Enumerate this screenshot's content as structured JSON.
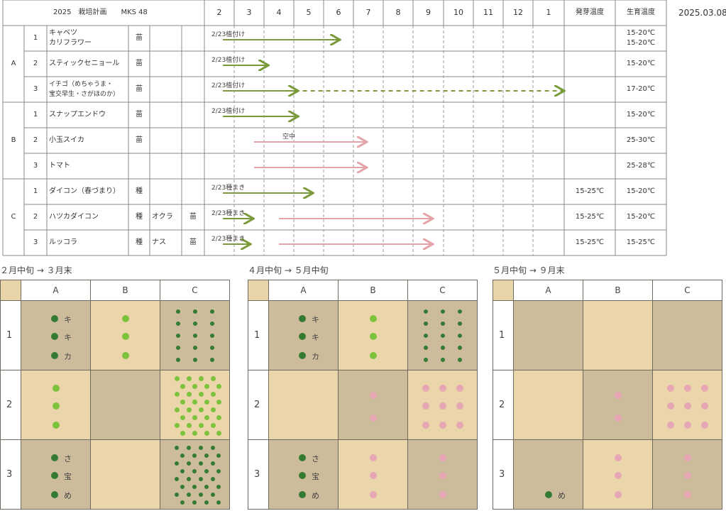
{
  "header": {
    "title": "2025　栽培計画　　MKS 48",
    "date": "2025.03.08",
    "months": [
      "2",
      "3",
      "4",
      "5",
      "6",
      "7",
      "8",
      "9",
      "10",
      "11",
      "12",
      "1"
    ],
    "germ_temp_label": "発芽温度",
    "grow_temp_label": "生育温度"
  },
  "groups": [
    "A",
    "B",
    "C"
  ],
  "rows": [
    {
      "num": "1",
      "name": "キャベツ",
      "name2": "カリフラワー",
      "type": "苗",
      "sub": "",
      "sub_type": "",
      "germ": "",
      "grow": "15-20℃",
      "grow2": "15-20℃",
      "annotation": "2/23植付け"
    },
    {
      "num": "2",
      "name": "スティックセニョール",
      "name2": "",
      "type": "苗",
      "sub": "",
      "sub_type": "",
      "germ": "",
      "grow": "15-20℃",
      "grow2": "",
      "annotation": "2/23植付け"
    },
    {
      "num": "3",
      "name": "イチゴ（めちゃうま・",
      "name2": "宝交早生・さがほのか）",
      "type": "苗",
      "sub": "",
      "sub_type": "",
      "germ": "",
      "grow": "17-20℃",
      "grow2": "",
      "annotation": "2/23植付け"
    },
    {
      "num": "1",
      "name": "スナップエンドウ",
      "name2": "",
      "type": "苗",
      "sub": "",
      "sub_type": "",
      "germ": "",
      "grow": "15-20℃",
      "grow2": "",
      "annotation": "2/23植付け"
    },
    {
      "num": "2",
      "name": "小玉スイカ",
      "name2": "",
      "type": "苗",
      "sub": "",
      "sub_type": "",
      "germ": "",
      "grow": "25-30℃",
      "grow2": "",
      "annotation": "空中"
    },
    {
      "num": "3",
      "name": "トマト",
      "name2": "",
      "type": "",
      "sub": "",
      "sub_type": "",
      "germ": "",
      "grow": "25-28℃",
      "grow2": "",
      "annotation": ""
    },
    {
      "num": "1",
      "name": "ダイコン（春づまり）",
      "name2": "",
      "type": "種",
      "sub": "",
      "sub_type": "",
      "germ": "15-25℃",
      "grow": "15-20℃",
      "grow2": "",
      "annotation": "2/23種まき"
    },
    {
      "num": "2",
      "name": "ハツカダイコン",
      "name2": "",
      "type": "種",
      "sub": "オクラ",
      "sub_type": "苗",
      "germ": "15-25℃",
      "grow": "15-20℃",
      "grow2": "",
      "annotation": "2/23種まき"
    },
    {
      "num": "3",
      "name": "ルッコラ",
      "name2": "",
      "type": "種",
      "sub": "ナス",
      "sub_type": "苗",
      "germ": "15-25℃",
      "grow": "15-25℃",
      "grow2": "",
      "annotation": "2/23種まき"
    }
  ],
  "timeline": [
    {
      "row": 0,
      "color": "green",
      "style": "solid",
      "from": 2.0,
      "to": 6.5
    },
    {
      "row": 1,
      "color": "green",
      "style": "solid",
      "from": 2.0,
      "to": 4.1
    },
    {
      "row": 2,
      "color": "green",
      "style": "solid",
      "from": 2.0,
      "to": 5.1
    },
    {
      "row": 2,
      "color": "green",
      "style": "dashed",
      "from": 5.3,
      "to": 1.5
    },
    {
      "row": 3,
      "color": "green",
      "style": "solid",
      "from": 2.0,
      "to": 5.1
    },
    {
      "row": 4,
      "color": "pink",
      "style": "solid",
      "from": 4.0,
      "to": 7.4
    },
    {
      "row": 5,
      "color": "pink",
      "style": "solid",
      "from": 4.0,
      "to": 7.4
    },
    {
      "row": 6,
      "color": "green",
      "style": "solid",
      "from": 2.0,
      "to": 5.6
    },
    {
      "row": 7,
      "color": "green",
      "style": "solid",
      "from": 2.0,
      "to": 3.6
    },
    {
      "row": 7,
      "color": "pink",
      "style": "solid",
      "from": 4.5,
      "to": 9.6
    },
    {
      "row": 8,
      "color": "green",
      "style": "solid",
      "from": 2.0,
      "to": 3.5
    },
    {
      "row": 8,
      "color": "pink",
      "style": "solid",
      "from": 4.5,
      "to": 9.6
    }
  ],
  "colors": {
    "green": "#7a9a3c",
    "pink": "#e3a3a8",
    "dark_cell": "#cdbc9c",
    "light_cell": "#ead6aa",
    "dark_green": "#357a32",
    "light_green": "#7dc23c",
    "pink_dot": "#e7a6b3"
  },
  "plans": [
    {
      "title": "２月中旬 → ３月末",
      "cols": [
        "A",
        "B",
        "C"
      ],
      "rows": [
        "1",
        "2",
        "3"
      ],
      "cells": [
        {
          "r": 0,
          "c": 0,
          "bg": "dark",
          "dots": "chars3",
          "chars": [
            "キ",
            "キ",
            "カ"
          ]
        },
        {
          "r": 0,
          "c": 1,
          "bg": "light",
          "dots": "lg3"
        },
        {
          "r": 0,
          "c": 2,
          "bg": "dark",
          "dots": "dgGrid3x5"
        },
        {
          "r": 1,
          "c": 0,
          "bg": "light",
          "dots": "lg3"
        },
        {
          "r": 1,
          "c": 1,
          "bg": "dark",
          "dots": "none"
        },
        {
          "r": 1,
          "c": 2,
          "bg": "light",
          "dots": "lgDense"
        },
        {
          "r": 2,
          "c": 0,
          "bg": "dark",
          "dots": "chars3",
          "chars": [
            "さ",
            "宝",
            "め"
          ]
        },
        {
          "r": 2,
          "c": 1,
          "bg": "light",
          "dots": "none"
        },
        {
          "r": 2,
          "c": 2,
          "bg": "dark",
          "dots": "dgDense"
        }
      ]
    },
    {
      "title": "４月中旬 → ５月中旬",
      "cols": [
        "A",
        "B",
        "C"
      ],
      "rows": [
        "1",
        "2",
        "3"
      ],
      "cells": [
        {
          "r": 0,
          "c": 0,
          "bg": "dark",
          "dots": "chars3",
          "chars": [
            "キ",
            "キ",
            "カ"
          ]
        },
        {
          "r": 0,
          "c": 1,
          "bg": "light",
          "dots": "lg3"
        },
        {
          "r": 0,
          "c": 2,
          "bg": "dark",
          "dots": "dgGrid3x5"
        },
        {
          "r": 1,
          "c": 0,
          "bg": "light",
          "dots": "none"
        },
        {
          "r": 1,
          "c": 1,
          "bg": "dark",
          "dots": "pk2"
        },
        {
          "r": 1,
          "c": 2,
          "bg": "light",
          "dots": "pk3x3"
        },
        {
          "r": 2,
          "c": 0,
          "bg": "dark",
          "dots": "chars3",
          "chars": [
            "さ",
            "宝",
            "め"
          ]
        },
        {
          "r": 2,
          "c": 1,
          "bg": "light",
          "dots": "pk3"
        },
        {
          "r": 2,
          "c": 2,
          "bg": "dark",
          "dots": "pk3"
        }
      ]
    },
    {
      "title": "５月中旬 → ９月末",
      "cols": [
        "A",
        "B",
        "C"
      ],
      "rows": [
        "1",
        "2",
        "3"
      ],
      "cells": [
        {
          "r": 0,
          "c": 0,
          "bg": "dark",
          "dots": "none"
        },
        {
          "r": 0,
          "c": 1,
          "bg": "light",
          "dots": "none"
        },
        {
          "r": 0,
          "c": 2,
          "bg": "dark",
          "dots": "none"
        },
        {
          "r": 1,
          "c": 0,
          "bg": "light",
          "dots": "none"
        },
        {
          "r": 1,
          "c": 1,
          "bg": "dark",
          "dots": "pk2"
        },
        {
          "r": 1,
          "c": 2,
          "bg": "light",
          "dots": "pk3x3"
        },
        {
          "r": 2,
          "c": 0,
          "bg": "dark",
          "dots": "char1",
          "chars": [
            "め"
          ]
        },
        {
          "r": 2,
          "c": 1,
          "bg": "light",
          "dots": "pk3"
        },
        {
          "r": 2,
          "c": 2,
          "bg": "dark",
          "dots": "pk3"
        }
      ]
    }
  ]
}
